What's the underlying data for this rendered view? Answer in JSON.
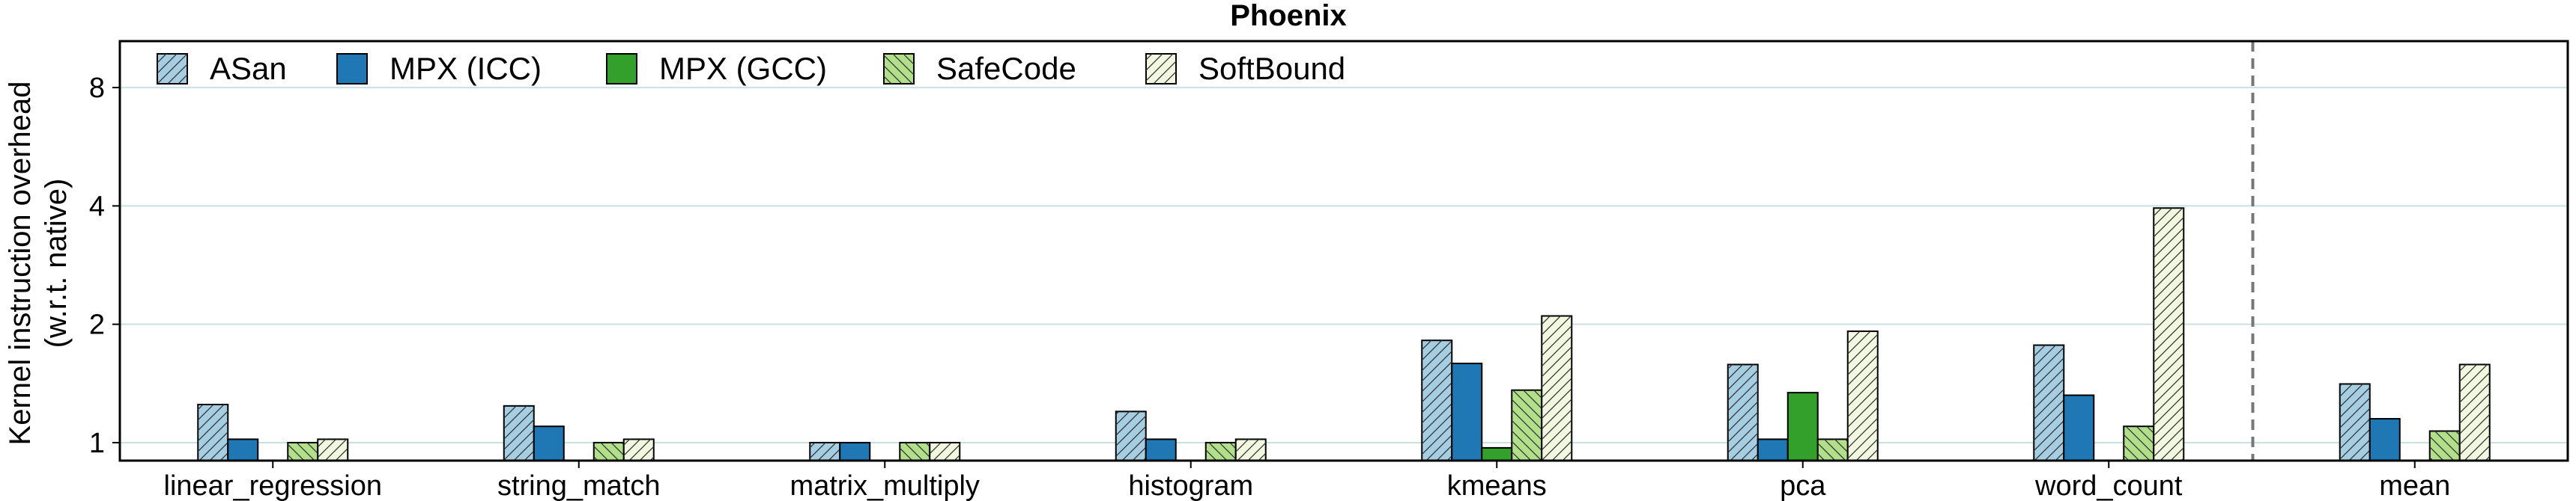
{
  "chart_data": {
    "type": "bar",
    "title": "Phoenix",
    "ylabel_line1": "Kernel instruction overhead",
    "ylabel_line2": "(w.r.t. native)",
    "xlabel": "",
    "yscale": "log2",
    "ylim": [
      0.9,
      10.5
    ],
    "yticks": [
      1,
      2,
      4,
      8
    ],
    "ytick_labels": [
      "1",
      "2",
      "4",
      "8"
    ],
    "grid": "horizontal",
    "legend_position": "top-left",
    "categories": [
      "linear_regression",
      "string_match",
      "matrix_multiply",
      "histogram",
      "kmeans",
      "pca",
      "word_count",
      "mean"
    ],
    "separator_before_category": "mean",
    "series": [
      {
        "name": "ASan",
        "color": "#a6cee3",
        "hatch": "//",
        "values": [
          1.25,
          1.24,
          1.0,
          1.2,
          1.82,
          1.58,
          1.77,
          1.41
        ]
      },
      {
        "name": "MPX (ICC)",
        "color": "#1f78b4",
        "hatch": "",
        "values": [
          1.02,
          1.1,
          1.0,
          1.02,
          1.59,
          1.02,
          1.32,
          1.15
        ]
      },
      {
        "name": "MPX (GCC)",
        "color": "#33a02c",
        "hatch": "",
        "values": [
          null,
          null,
          null,
          null,
          0.97,
          1.34,
          null,
          null
        ]
      },
      {
        "name": "SafeCode",
        "color": "#b2df8a",
        "hatch": "\\\\",
        "values": [
          1.0,
          1.0,
          1.0,
          1.0,
          1.36,
          1.02,
          1.1,
          1.07
        ]
      },
      {
        "name": "SoftBound",
        "color": "#f2f7e0",
        "hatch": "//",
        "values": [
          1.02,
          1.02,
          1.0,
          1.02,
          2.1,
          1.92,
          3.95,
          1.58
        ]
      }
    ]
  }
}
